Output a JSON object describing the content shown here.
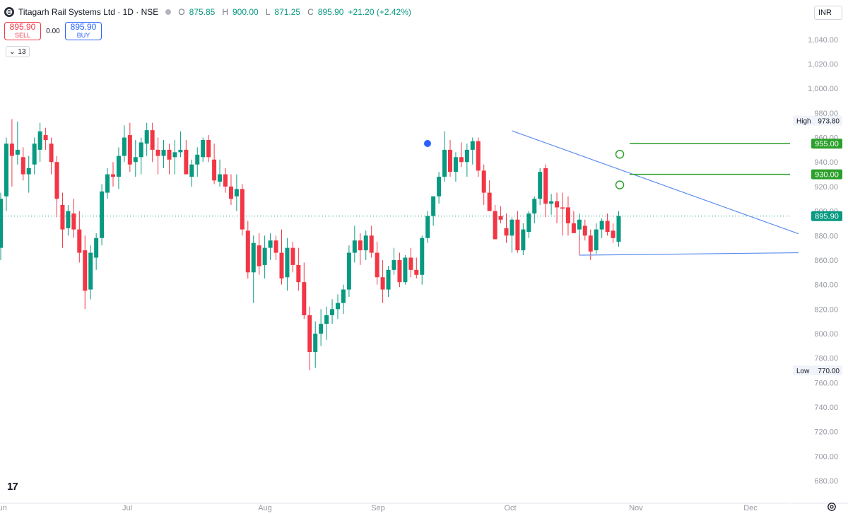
{
  "header": {
    "symbol": "Titagarh Rail Systems Ltd · 1D · NSE",
    "open_key": "O",
    "open": "875.85",
    "high_key": "H",
    "high": "900.00",
    "low_key": "L",
    "low": "871.25",
    "close_key": "C",
    "close": "895.90",
    "change": "+21.20 (+2.42%)"
  },
  "trade": {
    "sell_price": "895.90",
    "sell_label": "SELL",
    "spread": "0.00",
    "buy_price": "895.90",
    "buy_label": "BUY"
  },
  "indicator": {
    "toggle_glyph": "⌄",
    "count": "13"
  },
  "currency": "INR",
  "logo_text": "17",
  "colors": {
    "up": "#089981",
    "down": "#f23645",
    "trend": "#5b8def",
    "alert_line": "#2ca02c",
    "price_line": "#089981",
    "axis_text": "#9598a1"
  },
  "chart_data": {
    "type": "candlestick",
    "ylim": [
      670,
      1050
    ],
    "y_ticks": [
      "680.00",
      "700.00",
      "720.00",
      "740.00",
      "760.00",
      "780.00",
      "800.00",
      "820.00",
      "840.00",
      "860.00",
      "880.00",
      "900.00",
      "920.00",
      "940.00",
      "960.00",
      "980.00",
      "1,000.00",
      "1,020.00",
      "1,040.00"
    ],
    "x_ticks": [
      "Jun",
      "Jul",
      "Aug",
      "Sep",
      "Oct",
      "Nov",
      "Dec"
    ],
    "candles": [
      [
        870,
        915,
        860,
        910
      ],
      [
        912,
        960,
        900,
        955
      ],
      [
        955,
        975,
        920,
        945
      ],
      [
        946,
        973,
        938,
        950
      ],
      [
        944,
        952,
        925,
        930
      ],
      [
        930,
        945,
        915,
        935
      ],
      [
        938,
        960,
        930,
        955
      ],
      [
        950,
        972,
        940,
        965
      ],
      [
        962,
        968,
        950,
        958
      ],
      [
        955,
        960,
        930,
        940
      ],
      [
        940,
        945,
        895,
        910
      ],
      [
        905,
        915,
        870,
        885
      ],
      [
        886,
        905,
        880,
        900
      ],
      [
        898,
        910,
        878,
        885
      ],
      [
        885,
        900,
        858,
        866
      ],
      [
        868,
        880,
        820,
        835
      ],
      [
        836,
        872,
        828,
        866
      ],
      [
        862,
        882,
        852,
        878
      ],
      [
        878,
        922,
        872,
        916
      ],
      [
        915,
        935,
        910,
        930
      ],
      [
        930,
        940,
        920,
        928
      ],
      [
        928,
        952,
        918,
        945
      ],
      [
        945,
        970,
        940,
        960
      ],
      [
        962,
        972,
        932,
        938
      ],
      [
        940,
        958,
        928,
        944
      ],
      [
        944,
        960,
        930,
        956
      ],
      [
        955,
        972,
        945,
        966
      ],
      [
        966,
        972,
        940,
        950
      ],
      [
        950,
        960,
        930,
        945
      ],
      [
        945,
        958,
        935,
        950
      ],
      [
        950,
        955,
        930,
        942
      ],
      [
        944,
        958,
        930,
        948
      ],
      [
        948,
        965,
        944,
        950
      ],
      [
        950,
        958,
        932,
        930
      ],
      [
        928,
        942,
        920,
        938
      ],
      [
        938,
        952,
        928,
        946
      ],
      [
        944,
        960,
        940,
        958
      ],
      [
        958,
        962,
        940,
        944
      ],
      [
        942,
        955,
        922,
        925
      ],
      [
        924,
        942,
        920,
        930
      ],
      [
        930,
        935,
        915,
        920
      ],
      [
        920,
        930,
        905,
        910
      ],
      [
        912,
        930,
        900,
        918
      ],
      [
        918,
        922,
        880,
        885
      ],
      [
        884,
        892,
        845,
        850
      ],
      [
        850,
        880,
        825,
        874
      ],
      [
        872,
        882,
        848,
        855
      ],
      [
        856,
        880,
        845,
        870
      ],
      [
        870,
        882,
        860,
        876
      ],
      [
        876,
        880,
        860,
        866
      ],
      [
        866,
        885,
        840,
        845
      ],
      [
        846,
        878,
        835,
        870
      ],
      [
        870,
        875,
        850,
        856
      ],
      [
        856,
        870,
        835,
        842
      ],
      [
        842,
        858,
        812,
        815
      ],
      [
        815,
        822,
        770,
        785
      ],
      [
        785,
        810,
        772,
        800
      ],
      [
        800,
        820,
        790,
        808
      ],
      [
        808,
        822,
        795,
        815
      ],
      [
        815,
        828,
        808,
        820
      ],
      [
        820,
        832,
        812,
        825
      ],
      [
        825,
        840,
        816,
        836
      ],
      [
        836,
        872,
        830,
        866
      ],
      [
        866,
        888,
        858,
        876
      ],
      [
        876,
        882,
        856,
        868
      ],
      [
        868,
        884,
        860,
        880
      ],
      [
        880,
        888,
        862,
        866
      ],
      [
        866,
        875,
        840,
        846
      ],
      [
        846,
        860,
        825,
        836
      ],
      [
        836,
        855,
        830,
        852
      ],
      [
        852,
        870,
        848,
        860
      ],
      [
        860,
        866,
        838,
        842
      ],
      [
        842,
        864,
        840,
        862
      ],
      [
        862,
        870,
        846,
        852
      ],
      [
        852,
        862,
        845,
        848
      ],
      [
        848,
        880,
        840,
        878
      ],
      [
        878,
        900,
        874,
        896
      ],
      [
        896,
        912,
        888,
        912
      ],
      [
        912,
        932,
        906,
        928
      ],
      [
        928,
        965,
        924,
        950
      ],
      [
        950,
        958,
        928,
        932
      ],
      [
        932,
        948,
        924,
        944
      ],
      [
        944,
        956,
        936,
        940
      ],
      [
        940,
        955,
        928,
        950
      ],
      [
        950,
        960,
        938,
        957
      ],
      [
        957,
        960,
        928,
        933
      ],
      [
        933,
        938,
        905,
        915
      ],
      [
        915,
        925,
        900,
        900
      ],
      [
        900,
        905,
        880,
        877
      ],
      [
        896,
        904,
        890,
        893
      ],
      [
        886,
        898,
        874,
        880
      ],
      [
        880,
        895,
        866,
        893
      ],
      [
        893,
        900,
        866,
        868
      ],
      [
        868,
        890,
        864,
        885
      ],
      [
        883,
        900,
        878,
        898
      ],
      [
        898,
        912,
        890,
        910
      ],
      [
        910,
        935,
        905,
        932
      ],
      [
        935,
        938,
        895,
        906
      ],
      [
        906,
        914,
        897,
        908
      ],
      [
        908,
        915,
        890,
        903
      ],
      [
        903,
        915,
        880,
        902
      ],
      [
        903,
        912,
        880,
        890
      ],
      [
        890,
        900,
        882,
        882
      ],
      [
        885,
        898,
        876,
        893
      ],
      [
        888,
        893,
        876,
        880
      ],
      [
        880,
        885,
        860,
        867
      ],
      [
        868,
        890,
        865,
        885
      ],
      [
        885,
        894,
        878,
        892
      ],
      [
        892,
        898,
        880,
        883
      ],
      [
        884,
        890,
        874,
        878
      ],
      [
        875,
        900,
        871,
        896
      ]
    ],
    "last_price": "895.90",
    "high_marker": {
      "label": "High",
      "value": "973.80"
    },
    "low_marker": {
      "label": "Low",
      "value": "770.00"
    },
    "alerts": [
      {
        "value": "955.00"
      },
      {
        "value": "930.00"
      }
    ],
    "trendlines": [
      {
        "from_date_index": 91,
        "from_price": 965.5,
        "to_date_index": 142,
        "to_price": 881.5
      },
      {
        "from_date_index": 103,
        "from_price": 864.0,
        "to_date_index": 142,
        "to_price": 866.0
      }
    ]
  }
}
